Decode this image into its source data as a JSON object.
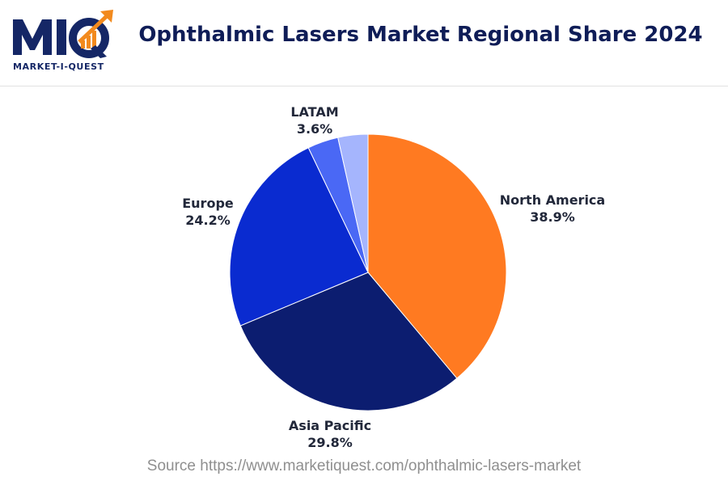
{
  "header": {
    "logo_text": "MIQ",
    "logo_subtitle": "MARKET-I-QUEST",
    "title": "Ophthalmic Lasers Market Regional Share 2024"
  },
  "chart_data": {
    "type": "pie",
    "title": "Ophthalmic Lasers Market Regional Share 2024",
    "slices": [
      {
        "label": "North America",
        "value": 38.9,
        "value_label": "38.9%",
        "color": "#FF7A21"
      },
      {
        "label": "Asia Pacific",
        "value": 29.8,
        "value_label": "29.8%",
        "color": "#0C1D70"
      },
      {
        "label": "Europe",
        "value": 24.2,
        "value_label": "24.2%",
        "color": "#0A2BD0"
      },
      {
        "label": "LATAM",
        "value": 3.6,
        "value_label": "3.6%",
        "color": "#4A68F5"
      },
      {
        "label": "",
        "value": 3.5,
        "value_label": "",
        "color": "#A5B5FD"
      }
    ],
    "start_angle_deg": 0,
    "direction": "clockwise"
  },
  "footer": {
    "source": "Source https://www.marketiquest.com/ophthalmic-lasers-market"
  },
  "colors": {
    "brand_navy": "#152766",
    "brand_orange": "#F28A1E",
    "title": "#0f1d57",
    "source_text": "#8f8f8f"
  }
}
